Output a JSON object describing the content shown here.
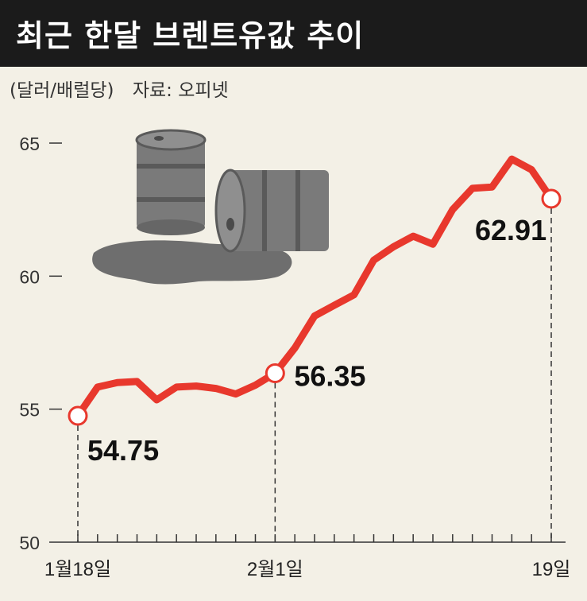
{
  "title": "최근 한달 브렌트유값 추이",
  "unit_label": "(달러/배럴당)",
  "source_label": "자료: 오피넷",
  "colors": {
    "line": "#e8382d",
    "title_bg": "#1b1b1b",
    "background": "#f3f0e6",
    "axis": "#333333",
    "barrel": "#7a7a7a"
  },
  "illustration": "oil-barrels-spill",
  "chart_data": {
    "type": "line",
    "title": "",
    "xlabel": "",
    "ylabel": "",
    "ylim": [
      50,
      65
    ],
    "yticks": [
      50,
      55,
      60,
      65
    ],
    "xticks": [
      {
        "index": 0,
        "label": "1월18일"
      },
      {
        "index": 10,
        "label": "2월1일"
      },
      {
        "index": 24,
        "label": "19일"
      }
    ],
    "grid": false,
    "series": [
      {
        "color": "#e8382d",
        "values": [
          54.75,
          55.83,
          56.0,
          56.04,
          55.35,
          55.83,
          55.87,
          55.78,
          55.57,
          55.9,
          56.35,
          57.3,
          58.5,
          58.9,
          59.3,
          60.6,
          61.1,
          61.5,
          61.2,
          62.5,
          63.3,
          63.35,
          64.4,
          64.0,
          62.91
        ]
      }
    ],
    "annotations": [
      {
        "index": 0,
        "label": "54.75"
      },
      {
        "index": 10,
        "label": "56.35"
      },
      {
        "index": 24,
        "label": "62.91"
      }
    ]
  }
}
